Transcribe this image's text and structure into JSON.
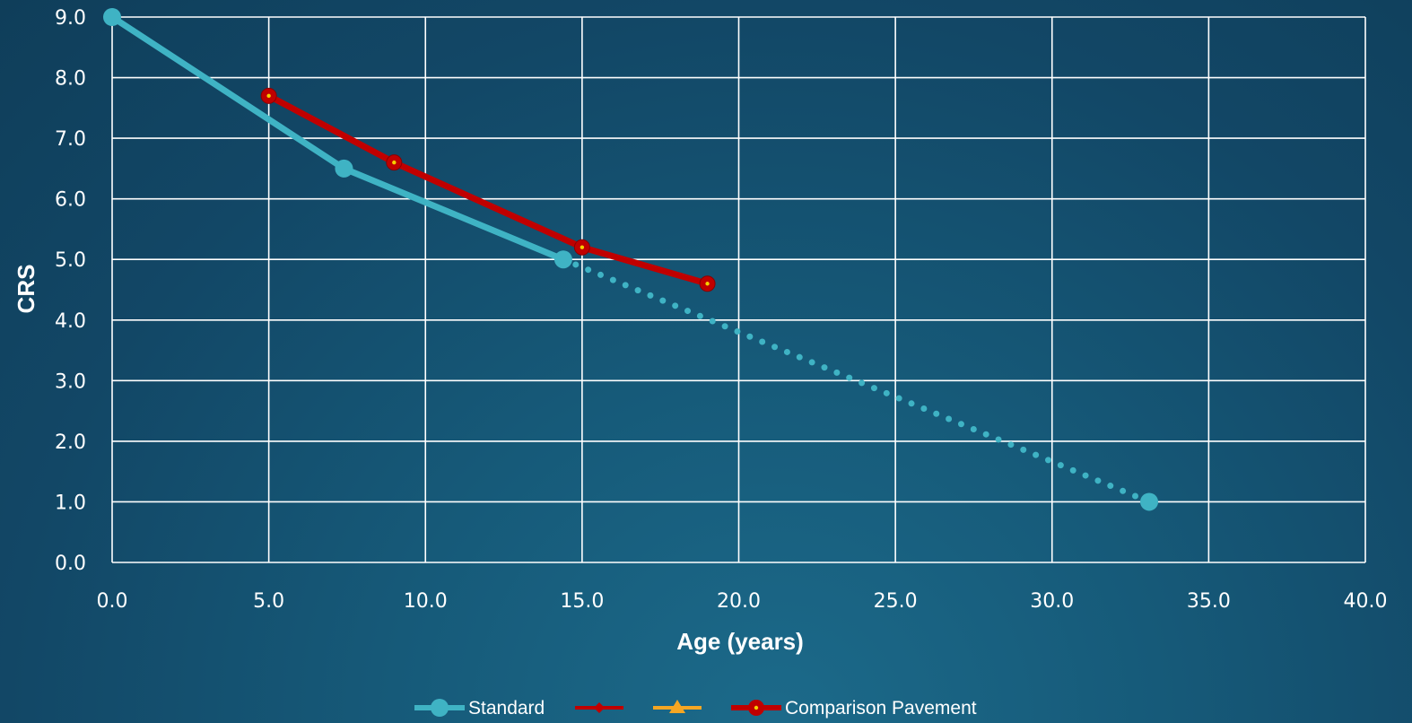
{
  "chart_data": {
    "type": "line",
    "xlabel": "Age (years)",
    "ylabel": "CRS",
    "xlim": [
      0,
      40
    ],
    "ylim": [
      0,
      9
    ],
    "x_ticks": [
      "0.0",
      "5.0",
      "10.0",
      "15.0",
      "20.0",
      "25.0",
      "30.0",
      "35.0",
      "40.0"
    ],
    "y_ticks": [
      "0.0",
      "1.0",
      "2.0",
      "3.0",
      "4.0",
      "5.0",
      "6.0",
      "7.0",
      "8.0",
      "9.0"
    ],
    "grid": true,
    "legend_position": "bottom",
    "series": [
      {
        "name": "Standard",
        "color": "#3fb3c4",
        "style": "solid",
        "marker": "circle",
        "points": [
          [
            0.0,
            9.0
          ],
          [
            7.4,
            6.5
          ],
          [
            14.4,
            5.0
          ]
        ]
      },
      {
        "name": "",
        "color": "#3fb3c4",
        "style": "dotted",
        "marker": "circle-end",
        "points": [
          [
            14.4,
            5.0
          ],
          [
            33.1,
            1.0
          ]
        ]
      },
      {
        "name": "",
        "color": "#c00000",
        "style": "solid",
        "marker": "diamond",
        "points": []
      },
      {
        "name": "",
        "color": "#f5a623",
        "style": "solid",
        "marker": "triangle",
        "points": []
      },
      {
        "name": "Comparison Pavement",
        "color": "#c00000",
        "style": "solid",
        "marker": "circle-dot",
        "points": [
          [
            5.0,
            7.7
          ],
          [
            9.0,
            6.6
          ],
          [
            15.0,
            5.2
          ],
          [
            19.0,
            4.6
          ]
        ]
      }
    ],
    "legend": [
      {
        "label": "Standard",
        "color": "#3fb3c4",
        "marker": "circle"
      },
      {
        "label": "",
        "color": "#c00000",
        "marker": "diamond"
      },
      {
        "label": "",
        "color": "#f5a623",
        "marker": "triangle"
      },
      {
        "label": "Comparison Pavement",
        "color": "#c00000",
        "marker": "circle-dot"
      }
    ]
  }
}
